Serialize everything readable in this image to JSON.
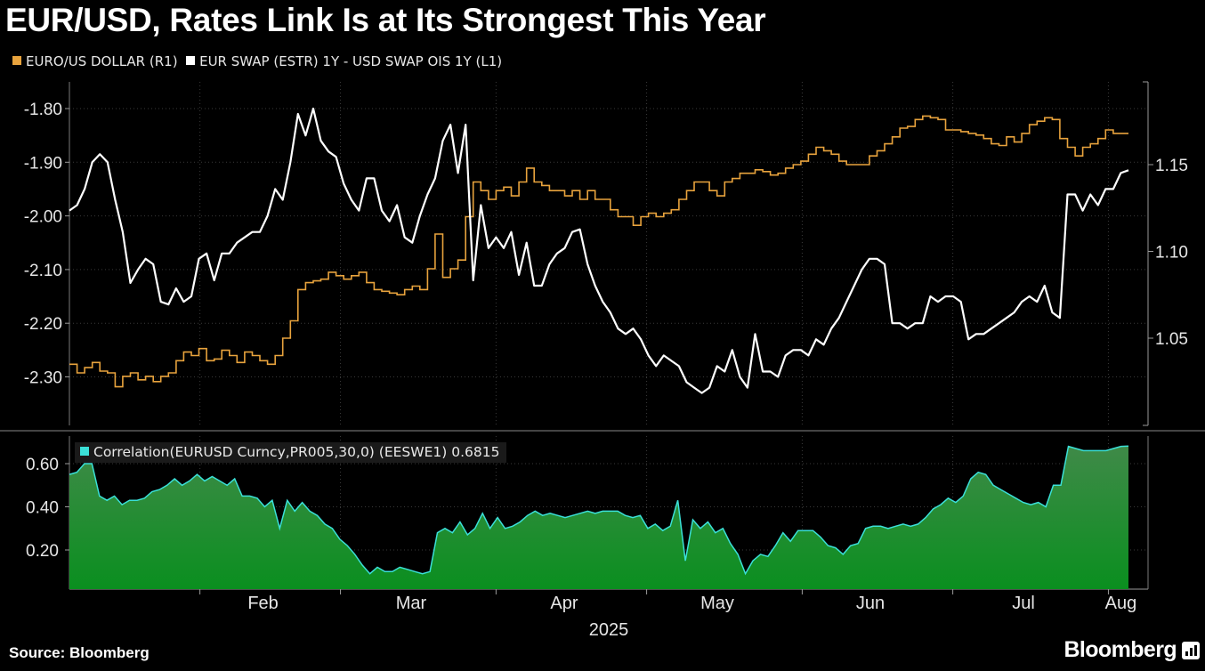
{
  "header": {
    "title": "EUR/USD, Rates Link Is at Its Strongest This Year"
  },
  "legend": {
    "eurusd_label": "EURO/US DOLLAR (R1)",
    "swap_label": "EUR SWAP (ESTR) 1Y - USD SWAP OIS 1Y (L1)",
    "corr_label": "Correlation(EURUSD Curncy,PR005,30,0) (EESWE1) 0.6815"
  },
  "colors": {
    "eurusd": "#e8a33d",
    "swap": "#ffffff",
    "corr_line": "#3be0d8",
    "corr_fill_top": "#3f8a48",
    "corr_fill_bottom": "#0a8f1f"
  },
  "footer": {
    "source": "Source: Bloomberg",
    "brand": "Bloomberg"
  },
  "chart_data": [
    {
      "type": "line",
      "x_axis": {
        "labels": [
          "Feb",
          "Mar",
          "Apr",
          "May",
          "Jun",
          "Jul",
          "Aug"
        ],
        "year_label": "2025",
        "range": [
          "2025-01-06",
          "2025-08-05"
        ]
      },
      "left_axis": {
        "ticks": [
          "-1.80",
          "-1.90",
          "-2.00",
          "-2.10",
          "-2.20",
          "-2.30"
        ],
        "range": [
          -2.39,
          -1.74
        ]
      },
      "right_axis": {
        "ticks": [
          "1.15",
          "1.10",
          "1.05"
        ],
        "range": [
          1.0,
          1.2
        ]
      },
      "grid": true,
      "series": [
        {
          "name": "EUR SWAP (ESTR) 1Y - USD SWAP OIS 1Y (L1)",
          "axis": "left",
          "values": [
            -1.99,
            -1.98,
            -1.95,
            -1.9,
            -1.885,
            -1.9,
            -1.97,
            -2.03,
            -2.125,
            -2.1,
            -2.08,
            -2.09,
            -2.16,
            -2.165,
            -2.135,
            -2.16,
            -2.15,
            -2.08,
            -2.07,
            -2.12,
            -2.07,
            -2.07,
            -2.05,
            -2.04,
            -2.03,
            -2.03,
            -2.0,
            -1.95,
            -1.97,
            -1.9,
            -1.81,
            -1.85,
            -1.8,
            -1.86,
            -1.88,
            -1.89,
            -1.94,
            -1.97,
            -1.99,
            -1.93,
            -1.93,
            -1.99,
            -2.01,
            -1.98,
            -2.04,
            -2.05,
            -2.0,
            -1.96,
            -1.93,
            -1.86,
            -1.83,
            -1.92,
            -1.83,
            -2.12,
            -1.98,
            -2.06,
            -2.04,
            -2.06,
            -2.03,
            -2.11,
            -2.05,
            -2.13,
            -2.13,
            -2.09,
            -2.07,
            -2.06,
            -2.03,
            -2.025,
            -2.09,
            -2.13,
            -2.16,
            -2.18,
            -2.21,
            -2.22,
            -2.21,
            -2.23,
            -2.26,
            -2.28,
            -2.26,
            -2.27,
            -2.28,
            -2.31,
            -2.32,
            -2.33,
            -2.32,
            -2.28,
            -2.29,
            -2.25,
            -2.3,
            -2.32,
            -2.22,
            -2.29,
            -2.29,
            -2.3,
            -2.26,
            -2.25,
            -2.25,
            -2.26,
            -2.23,
            -2.24,
            -2.21,
            -2.19,
            -2.16,
            -2.13,
            -2.1,
            -2.08,
            -2.08,
            -2.09,
            -2.2,
            -2.2,
            -2.21,
            -2.2,
            -2.2,
            -2.15,
            -2.16,
            -2.15,
            -2.15,
            -2.16,
            -2.23,
            -2.22,
            -2.22,
            -2.21,
            -2.2,
            -2.19,
            -2.18,
            -2.16,
            -2.15,
            -2.16,
            -2.13,
            -2.18,
            -2.19,
            -1.96,
            -1.96,
            -1.99,
            -1.96,
            -1.98,
            -1.95,
            -1.95,
            -1.92,
            -1.915
          ]
        },
        {
          "name": "EURO/US DOLLAR (R1)",
          "axis": "right",
          "values": [
            1.035,
            1.03,
            1.033,
            1.036,
            1.031,
            1.03,
            1.022,
            1.028,
            1.03,
            1.026,
            1.028,
            1.025,
            1.028,
            1.03,
            1.037,
            1.042,
            1.04,
            1.044,
            1.037,
            1.038,
            1.043,
            1.04,
            1.036,
            1.042,
            1.04,
            1.037,
            1.035,
            1.04,
            1.05,
            1.06,
            1.078,
            1.082,
            1.083,
            1.084,
            1.088,
            1.086,
            1.084,
            1.086,
            1.088,
            1.082,
            1.078,
            1.077,
            1.076,
            1.075,
            1.078,
            1.08,
            1.078,
            1.09,
            1.11,
            1.085,
            1.09,
            1.095,
            1.12,
            1.14,
            1.135,
            1.13,
            1.135,
            1.137,
            1.132,
            1.14,
            1.148,
            1.14,
            1.138,
            1.135,
            1.135,
            1.132,
            1.135,
            1.13,
            1.135,
            1.13,
            1.13,
            1.124,
            1.12,
            1.12,
            1.115,
            1.12,
            1.122,
            1.12,
            1.122,
            1.124,
            1.13,
            1.135,
            1.14,
            1.14,
            1.135,
            1.132,
            1.14,
            1.142,
            1.145,
            1.145,
            1.147,
            1.146,
            1.144,
            1.145,
            1.148,
            1.15,
            1.152,
            1.156,
            1.16,
            1.158,
            1.156,
            1.152,
            1.15,
            1.15,
            1.15,
            1.155,
            1.158,
            1.162,
            1.166,
            1.171,
            1.172,
            1.176,
            1.178,
            1.177,
            1.176,
            1.17,
            1.17,
            1.169,
            1.168,
            1.167,
            1.165,
            1.162,
            1.161,
            1.166,
            1.163,
            1.168,
            1.173,
            1.175,
            1.177,
            1.176,
            1.165,
            1.16,
            1.155,
            1.16,
            1.162,
            1.165,
            1.17,
            1.168,
            1.168,
            1.168
          ]
        }
      ]
    },
    {
      "type": "area",
      "left_axis": {
        "ticks": [
          "0.60",
          "0.40",
          "0.20"
        ],
        "range": [
          0.0,
          0.72
        ]
      },
      "series": [
        {
          "name": "Correlation(EURUSD Curncy,PR005,30,0) (EESWE1)",
          "values": [
            0.55,
            0.56,
            0.6,
            0.6,
            0.45,
            0.43,
            0.45,
            0.41,
            0.43,
            0.43,
            0.44,
            0.47,
            0.48,
            0.5,
            0.53,
            0.5,
            0.52,
            0.55,
            0.52,
            0.54,
            0.52,
            0.5,
            0.53,
            0.45,
            0.45,
            0.44,
            0.4,
            0.43,
            0.3,
            0.43,
            0.38,
            0.42,
            0.38,
            0.36,
            0.32,
            0.3,
            0.25,
            0.22,
            0.18,
            0.13,
            0.09,
            0.12,
            0.1,
            0.1,
            0.12,
            0.11,
            0.1,
            0.09,
            0.1,
            0.28,
            0.3,
            0.28,
            0.33,
            0.27,
            0.3,
            0.37,
            0.3,
            0.35,
            0.3,
            0.31,
            0.33,
            0.36,
            0.38,
            0.36,
            0.37,
            0.36,
            0.35,
            0.36,
            0.37,
            0.38,
            0.37,
            0.38,
            0.38,
            0.38,
            0.36,
            0.35,
            0.36,
            0.3,
            0.32,
            0.29,
            0.31,
            0.43,
            0.15,
            0.34,
            0.3,
            0.33,
            0.28,
            0.3,
            0.23,
            0.18,
            0.09,
            0.15,
            0.18,
            0.17,
            0.22,
            0.28,
            0.24,
            0.29,
            0.29,
            0.29,
            0.26,
            0.22,
            0.21,
            0.18,
            0.22,
            0.23,
            0.3,
            0.31,
            0.31,
            0.3,
            0.31,
            0.32,
            0.31,
            0.32,
            0.35,
            0.39,
            0.41,
            0.44,
            0.42,
            0.45,
            0.53,
            0.56,
            0.55,
            0.5,
            0.48,
            0.46,
            0.44,
            0.42,
            0.41,
            0.42,
            0.4,
            0.5,
            0.5,
            0.68,
            0.67,
            0.66,
            0.66,
            0.66,
            0.66,
            0.67,
            0.68,
            0.6815
          ]
        }
      ]
    }
  ]
}
